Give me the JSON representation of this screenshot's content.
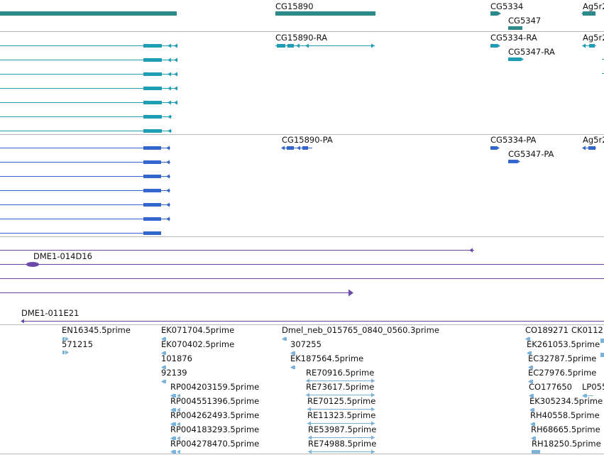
{
  "colors": {
    "gene": "#2d8a8a",
    "transcript": "#1f9db5",
    "protein": "#3366cc",
    "bac": "#6a4aa8",
    "est": "#7ab2d8",
    "divider": "#b8b8b8"
  },
  "gene_track": {
    "labels": [
      "CG15890",
      "CG5334",
      "CG5347",
      "Ag5r2"
    ]
  },
  "transcript_track": {
    "labels": [
      "CG15890-RA",
      "CG5334-RA",
      "CG5347-RA",
      "Ag5r2"
    ]
  },
  "protein_track": {
    "labels": [
      "CG15890-PA",
      "CG5334-PA",
      "CG5347-PA",
      "Ag5r2"
    ]
  },
  "bac_track": {
    "labels": [
      "DME1-014D16",
      "DME1-011E21"
    ]
  },
  "est_track": {
    "labels": [
      "EN16345.5prime",
      "571215",
      "EK071704.5prime",
      "EK070402.5prime",
      "101876",
      "92139",
      "RP004203159.5prime",
      "RP004551396.5prime",
      "RP004262493.5prime",
      "RP004183293.5prime",
      "RP004278470.5prime",
      "Dmel_neb_015765_0840_0560.3prime",
      "307255",
      "EK187564.5prime",
      "RE70916.5prime",
      "RE73617.5prime",
      "RE70125.5prime",
      "RE11323.5prime",
      "RE53987.5prime",
      "RE74988.5prime",
      "CO189271",
      "CK0112",
      "EK261053.5prime",
      "EC32787.5prime",
      "EC27976.5prime",
      "CO177650",
      "LP055",
      "EK305234.5prime",
      "RH40558.5prime",
      "RH68665.5prime",
      "RH18250.5prime"
    ]
  }
}
